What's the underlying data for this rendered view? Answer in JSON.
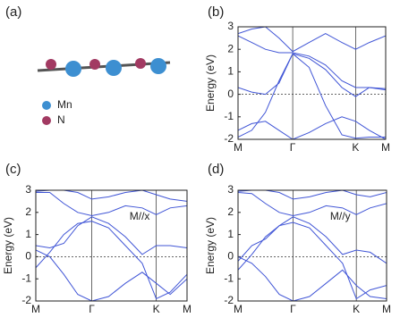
{
  "panel_a": {
    "panel_label": "(a)",
    "legend": [
      {
        "name": "Mn",
        "color": "#3d8fd1"
      },
      {
        "name": "N",
        "color": "#a23a62"
      }
    ]
  },
  "chart_data": [
    {
      "type": "line",
      "panel_label": "(b)",
      "ylabel": "Energy (eV)",
      "x": [
        0,
        0.25,
        0.5,
        0.75,
        1,
        1.3,
        1.6,
        1.9,
        2.15,
        2.4,
        2.7
      ],
      "xlim": [
        0,
        2.7
      ],
      "ylim": [
        -2,
        3
      ],
      "xticks": [
        {
          "value": 0,
          "label": "M"
        },
        {
          "value": 1,
          "label": "Γ"
        },
        {
          "value": 2.15,
          "label": "K"
        },
        {
          "value": 2.7,
          "label": "M"
        }
      ],
      "yticks": [
        -2,
        -1,
        0,
        1,
        2,
        3
      ],
      "fermi_level": 0,
      "series": [
        {
          "color": "#4055d6",
          "values": [
            -1.9,
            -1.6,
            -0.8,
            0.6,
            1.8,
            1.2,
            -0.5,
            -1.8,
            -1.95,
            -1.9,
            -1.9
          ]
        },
        {
          "color": "#4055d6",
          "values": [
            0.3,
            0.1,
            0.0,
            0.5,
            1.8,
            1.6,
            1.1,
            0.3,
            -0.1,
            0.3,
            0.25
          ]
        },
        {
          "color": "#4055d6",
          "values": [
            2.6,
            2.3,
            2.0,
            1.85,
            1.85,
            1.7,
            1.3,
            0.6,
            0.3,
            0.3,
            0.2
          ]
        },
        {
          "color": "#4055d6",
          "values": [
            2.7,
            2.9,
            3.0,
            2.5,
            1.9,
            2.3,
            2.7,
            2.3,
            2.0,
            2.3,
            2.6
          ]
        },
        {
          "color": "#4055d6",
          "values": [
            -1.6,
            -1.3,
            -1.2,
            -1.6,
            -2.0,
            -1.7,
            -1.3,
            -1.0,
            -1.2,
            -1.6,
            -2.0
          ]
        }
      ]
    },
    {
      "type": "line",
      "panel_label": "(c)",
      "ylabel": "Energy (eV)",
      "annotation": "M//x",
      "x": [
        0,
        0.25,
        0.5,
        0.75,
        1,
        1.3,
        1.6,
        1.9,
        2.15,
        2.4,
        2.7
      ],
      "xlim": [
        0,
        2.7
      ],
      "ylim": [
        -2,
        3
      ],
      "xticks": [
        {
          "value": 0,
          "label": "M"
        },
        {
          "value": 1,
          "label": "Γ"
        },
        {
          "value": 2.15,
          "label": "K"
        },
        {
          "value": 2.7,
          "label": "M"
        }
      ],
      "yticks": [
        -2,
        -1,
        0,
        1,
        2,
        3
      ],
      "fermi_level": 0,
      "series": [
        {
          "color": "#4055d6",
          "values": [
            0.3,
            0.0,
            -0.8,
            -1.7,
            -2.0,
            -1.8,
            -1.2,
            -0.7,
            -1.2,
            -1.7,
            -1.0
          ]
        },
        {
          "color": "#4055d6",
          "values": [
            -0.5,
            0.2,
            1.0,
            1.5,
            1.6,
            1.3,
            0.5,
            -0.3,
            -1.9,
            -1.6,
            -0.8
          ]
        },
        {
          "color": "#4055d6",
          "values": [
            2.9,
            2.9,
            2.4,
            2.0,
            1.85,
            2.0,
            2.3,
            2.2,
            1.9,
            2.2,
            2.3
          ]
        },
        {
          "color": "#4055d6",
          "values": [
            0.5,
            0.4,
            0.6,
            1.4,
            1.8,
            1.5,
            0.9,
            0.1,
            0.5,
            0.5,
            0.4
          ]
        },
        {
          "color": "#4055d6",
          "values": [
            2.95,
            3.0,
            3.0,
            2.9,
            2.6,
            2.7,
            2.9,
            3.0,
            2.8,
            2.6,
            2.5
          ]
        }
      ]
    },
    {
      "type": "line",
      "panel_label": "(d)",
      "ylabel": "Energy (eV)",
      "annotation": "M//y",
      "x": [
        0,
        0.25,
        0.5,
        0.75,
        1,
        1.3,
        1.6,
        1.9,
        2.15,
        2.4,
        2.7
      ],
      "xlim": [
        0,
        2.7
      ],
      "ylim": [
        -2,
        3
      ],
      "xticks": [
        {
          "value": 0,
          "label": "M"
        },
        {
          "value": 1,
          "label": "Γ"
        },
        {
          "value": 2.15,
          "label": "K"
        },
        {
          "value": 2.7,
          "label": "M"
        }
      ],
      "yticks": [
        -2,
        -1,
        0,
        1,
        2,
        3
      ],
      "fermi_level": 0,
      "series": [
        {
          "color": "#4055d6",
          "values": [
            0.0,
            -0.3,
            -0.9,
            -1.7,
            -2.0,
            -1.8,
            -1.2,
            -0.6,
            -1.3,
            -1.8,
            -1.9
          ]
        },
        {
          "color": "#4055d6",
          "values": [
            -0.6,
            0.1,
            0.9,
            1.4,
            1.55,
            1.3,
            0.5,
            -0.3,
            -1.9,
            -1.5,
            -1.3
          ]
        },
        {
          "color": "#4055d6",
          "values": [
            2.9,
            2.85,
            2.4,
            2.0,
            1.85,
            2.0,
            2.3,
            2.2,
            1.9,
            2.2,
            2.4
          ]
        },
        {
          "color": "#4055d6",
          "values": [
            -0.2,
            0.5,
            0.8,
            1.4,
            1.8,
            1.5,
            0.9,
            0.1,
            0.3,
            0.2,
            -0.3
          ]
        },
        {
          "color": "#4055d6",
          "values": [
            2.95,
            3.0,
            3.0,
            2.9,
            2.6,
            2.7,
            2.9,
            3.0,
            2.8,
            2.7,
            2.9
          ]
        }
      ]
    }
  ]
}
